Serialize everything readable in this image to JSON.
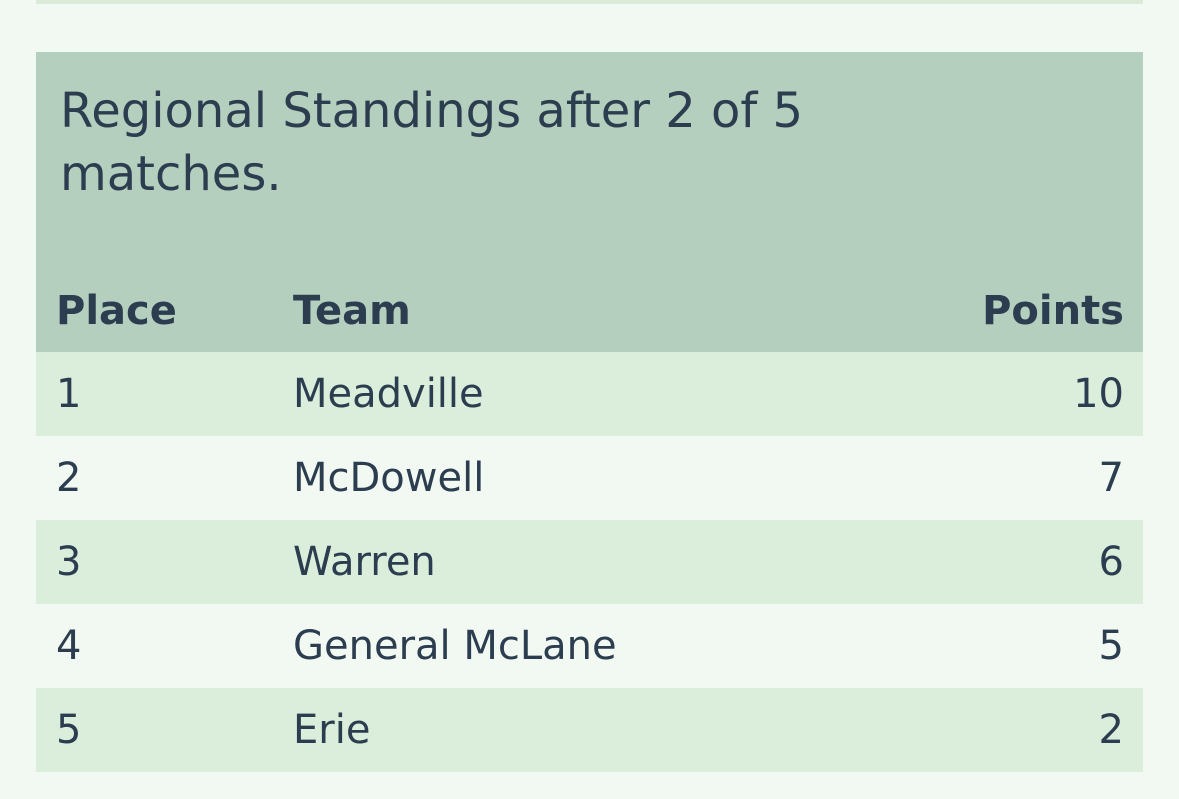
{
  "table": {
    "caption": "Regional Standings after 2 of 5 matches.",
    "headers": {
      "place": "Place",
      "team": "Team",
      "points": "Points"
    },
    "rows": [
      {
        "place": "1",
        "team": "Meadville",
        "points": "10"
      },
      {
        "place": "2",
        "team": "McDowell",
        "points": "7"
      },
      {
        "place": "3",
        "team": "Warren",
        "points": "6"
      },
      {
        "place": "4",
        "team": "General McLane",
        "points": "5"
      },
      {
        "place": "5",
        "team": "Erie",
        "points": "2"
      }
    ]
  },
  "colors": {
    "page_background": "#f2f8f2",
    "header_background": "#b5cfbf",
    "row_stripe": "#dbeddb",
    "text": "#2b3d4f"
  }
}
